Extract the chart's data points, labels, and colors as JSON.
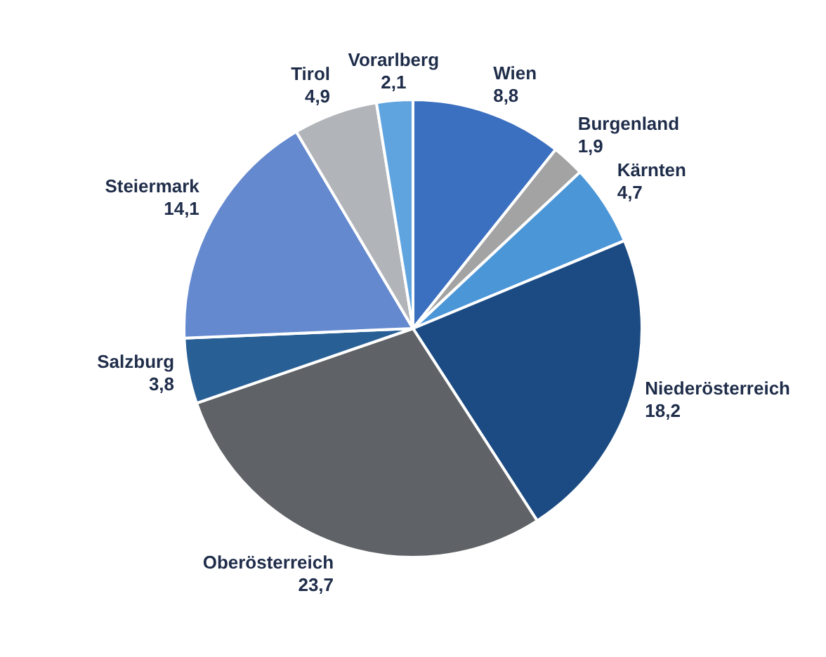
{
  "chart_data": {
    "type": "pie",
    "categories": [
      "Wien",
      "Burgenland",
      "Kärnten",
      "Niederösterreich",
      "Oberösterreich",
      "Salzburg",
      "Steiermark",
      "Tirol",
      "Vorarlberg"
    ],
    "values": [
      8.8,
      1.9,
      4.7,
      18.2,
      23.7,
      3.8,
      14.1,
      4.9,
      2.1
    ],
    "value_labels": [
      "8,8",
      "1,9",
      "4,7",
      "18,2",
      "23,7",
      "3,8",
      "14,1",
      "4,9",
      "2,1"
    ],
    "colors": [
      "#3b6fbf",
      "#a3a3a3",
      "#4b96d7",
      "#1b4b82",
      "#5f6266",
      "#285f95",
      "#6489cf",
      "#b1b4b8",
      "#5fa4df"
    ]
  }
}
